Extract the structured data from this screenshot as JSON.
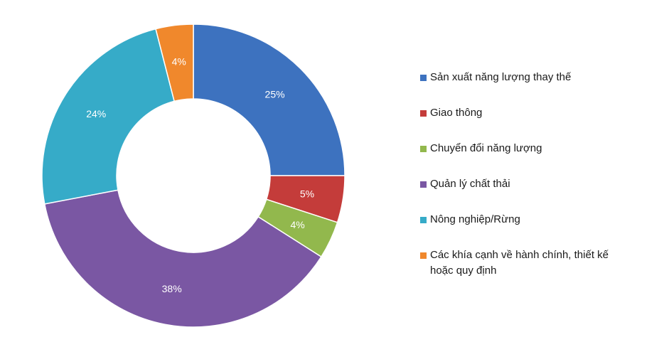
{
  "chart_data": {
    "type": "pie",
    "donut": true,
    "title": "",
    "legend_position": "right",
    "slices": [
      {
        "name": "Sản xuất năng lượng thay thế",
        "value": 25,
        "label": "25%",
        "color": "#3d72bf"
      },
      {
        "name": "Giao thông",
        "value": 5,
        "label": "5%",
        "color": "#c43c3a"
      },
      {
        "name": "Chuyển đổi năng lượng",
        "value": 4,
        "label": "4%",
        "color": "#92b84d"
      },
      {
        "name": "Quản lý chất thải",
        "value": 38,
        "label": "38%",
        "color": "#7a57a3"
      },
      {
        "name": "Nông nghiệp/Rừng",
        "value": 24,
        "label": "24%",
        "color": "#36abc8"
      },
      {
        "name": "Các khía cạnh về hành chính, thiết kế hoặc quy định",
        "value": 4,
        "label": "4%",
        "color": "#f0882c"
      }
    ]
  }
}
